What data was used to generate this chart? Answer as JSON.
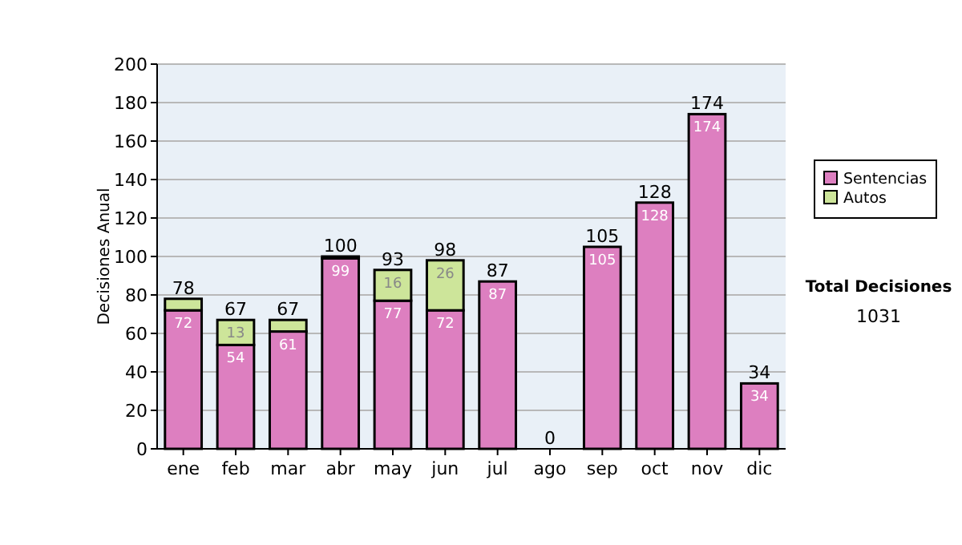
{
  "chart_data": {
    "type": "bar",
    "stacked": true,
    "ylabel": "Decisiones Anual",
    "categories": [
      "ene",
      "feb",
      "mar",
      "abr",
      "may",
      "jun",
      "jul",
      "ago",
      "sep",
      "oct",
      "nov",
      "dic"
    ],
    "series": [
      {
        "name": "Sentencias",
        "color": "#dd7fc0",
        "values": [
          72,
          54,
          61,
          99,
          77,
          72,
          87,
          0,
          105,
          128,
          174,
          34
        ],
        "value_labels": [
          "72",
          "54",
          "61",
          "99",
          "77",
          "72",
          "87",
          null,
          "105",
          "128",
          "174",
          "34"
        ]
      },
      {
        "name": "Autos",
        "color": "#cde59a",
        "values": [
          6,
          13,
          6,
          1,
          16,
          26,
          0,
          0,
          0,
          0,
          0,
          0
        ],
        "value_labels": [
          null,
          "13",
          null,
          null,
          "16",
          "26",
          null,
          null,
          null,
          null,
          null,
          null
        ]
      }
    ],
    "totals": [
      "78",
      "67",
      "67",
      "100",
      "93",
      "98",
      "87",
      "0",
      "105",
      "128",
      "174",
      "34"
    ],
    "ylim": [
      0,
      200
    ],
    "yticks": [
      0,
      20,
      40,
      60,
      80,
      100,
      120,
      140,
      160,
      180,
      200
    ],
    "grid": "y",
    "legend": "right",
    "annotations": [
      "Total Decisiones",
      "1031"
    ]
  }
}
